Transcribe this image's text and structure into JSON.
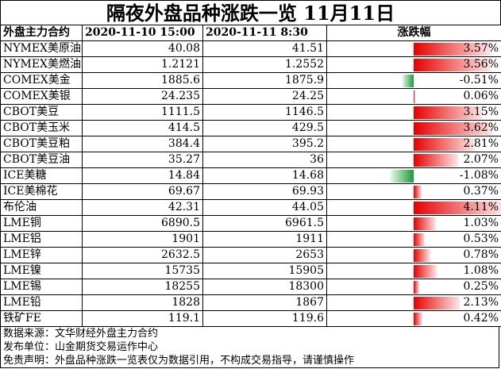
{
  "title": "隔夜外盘品种涨跌一览 11月11日",
  "header": {
    "col_name": "外盘主力合约",
    "col_prev": "2020-11-10 15:00",
    "col_curr": "2020-11-11  8:30",
    "col_change": "涨跌幅"
  },
  "rows": [
    {
      "name": "NYMEX美原油",
      "prev": "40.08",
      "curr": "41.51",
      "change": "3.57%",
      "pct": 3.57
    },
    {
      "name": "NYMEX美燃油",
      "prev": "1.2121",
      "curr": "1.2552",
      "change": "3.56%",
      "pct": 3.56
    },
    {
      "name": "COMEX美金",
      "prev": "1885.6",
      "curr": "1875.9",
      "change": "-0.51%",
      "pct": -0.51
    },
    {
      "name": "COMEX美银",
      "prev": "24.235",
      "curr": "24.25",
      "change": "0.06%",
      "pct": 0.06
    },
    {
      "name": "CBOT美豆",
      "prev": "1111.5",
      "curr": "1146.5",
      "change": "3.15%",
      "pct": 3.15
    },
    {
      "name": "CBOT美玉米",
      "prev": "414.5",
      "curr": "429.5",
      "change": "3.62%",
      "pct": 3.62
    },
    {
      "name": "CBOT美豆粕",
      "prev": "384.4",
      "curr": "395.2",
      "change": "2.81%",
      "pct": 2.81
    },
    {
      "name": "CBOT美豆油",
      "prev": "35.27",
      "curr": "36",
      "change": "2.07%",
      "pct": 2.07
    },
    {
      "name": "ICE美糖",
      "prev": "14.84",
      "curr": "14.68",
      "change": "-1.08%",
      "pct": -1.08
    },
    {
      "name": "ICE美棉花",
      "prev": "69.67",
      "curr": "69.93",
      "change": "0.37%",
      "pct": 0.37
    },
    {
      "name": "布伦油",
      "prev": "42.31",
      "curr": "44.05",
      "change": "4.11%",
      "pct": 4.11
    },
    {
      "name": "LME铜",
      "prev": "6890.5",
      "curr": "6961.5",
      "change": "1.03%",
      "pct": 1.03
    },
    {
      "name": "LME铝",
      "prev": "1901",
      "curr": "1911",
      "change": "0.53%",
      "pct": 0.53
    },
    {
      "name": "LME锌",
      "prev": "2632.5",
      "curr": "2653",
      "change": "0.78%",
      "pct": 0.78
    },
    {
      "name": "LME镍",
      "prev": "15735",
      "curr": "15905",
      "change": "1.08%",
      "pct": 1.08
    },
    {
      "name": "LME锡",
      "prev": "18255",
      "curr": "18300",
      "change": "0.25%",
      "pct": 0.25
    },
    {
      "name": "LME铅",
      "prev": "1828",
      "curr": "1867",
      "change": "2.13%",
      "pct": 2.13
    },
    {
      "name": "铁矿FE",
      "prev": "119.1",
      "curr": "119.6",
      "change": "0.42%",
      "pct": 0.42
    }
  ],
  "footer": {
    "source": "数据来源：文华财经外盘主力合约",
    "publisher": "发布单位：山金期货交易运作中心",
    "disclaimer": "免责声明：外盘品种涨跌一览表仅为数据引用，不构成交易指导，请谨慎操作"
  },
  "colors": {
    "positive": "#e60000",
    "negative": "#1a9a3a"
  }
}
